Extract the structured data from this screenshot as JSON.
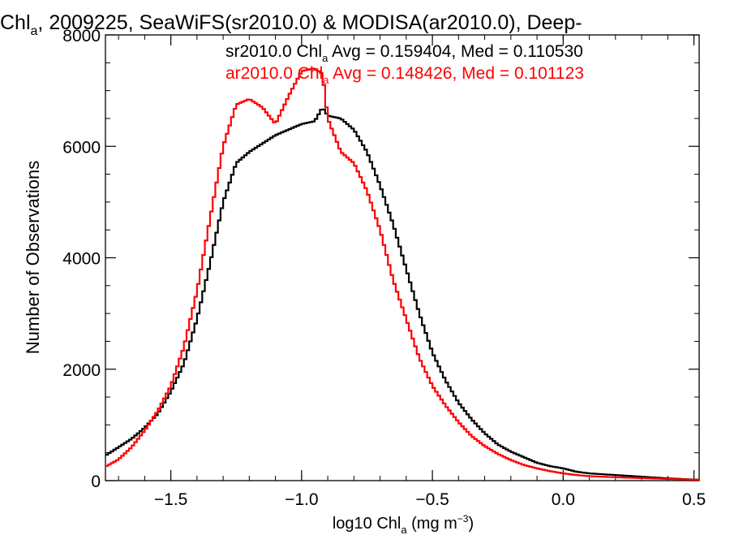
{
  "chart_data": {
    "type": "line",
    "title": {
      "main": "Chl",
      "main_sub": "a",
      "rest": ", 2009225, SeaWiFS(sr2010.0) & MODISA(ar2010.0), Deep-"
    },
    "xlabel": {
      "pre": "log10 Chl",
      "sub": "a",
      "mid": " (mg m",
      "sup": "−3",
      "post": ")"
    },
    "ylabel": "Number of Observations",
    "xlim": [
      -1.75,
      0.52
    ],
    "ylim": [
      0,
      8000
    ],
    "x_ticks": [
      {
        "value": -1.5,
        "label": "−1.5"
      },
      {
        "value": -1.0,
        "label": "−1.0"
      },
      {
        "value": -0.5,
        "label": "−0.5"
      },
      {
        "value": 0.0,
        "label": "0.0"
      },
      {
        "value": 0.5,
        "label": "0.5"
      }
    ],
    "y_ticks": [
      {
        "value": 0,
        "label": "0"
      },
      {
        "value": 2000,
        "label": "2000"
      },
      {
        "value": 4000,
        "label": "4000"
      },
      {
        "value": 6000,
        "label": "6000"
      },
      {
        "value": 8000,
        "label": "8000"
      }
    ],
    "x_minor_step": 0.1,
    "y_minor_step": 500,
    "grid": false,
    "legend_position": "top-right",
    "series": [
      {
        "legend": {
          "pre": "sr2010.0 Chl",
          "sub": "a",
          "post": " Avg = 0.159404, Med = 0.110530"
        },
        "color": "#000000",
        "x": [
          -1.75,
          -1.7,
          -1.65,
          -1.6,
          -1.55,
          -1.5,
          -1.45,
          -1.4,
          -1.35,
          -1.3,
          -1.25,
          -1.2,
          -1.15,
          -1.1,
          -1.05,
          -1.0,
          -0.95,
          -0.92,
          -0.9,
          -0.85,
          -0.8,
          -0.75,
          -0.7,
          -0.65,
          -0.6,
          -0.55,
          -0.5,
          -0.45,
          -0.4,
          -0.35,
          -0.3,
          -0.25,
          -0.2,
          -0.15,
          -0.1,
          -0.05,
          0.0,
          0.05,
          0.1,
          0.2,
          0.3,
          0.4,
          0.52
        ],
        "values": [
          450,
          600,
          750,
          950,
          1200,
          1600,
          2100,
          2900,
          3900,
          5000,
          5700,
          5900,
          6050,
          6200,
          6300,
          6400,
          6450,
          6700,
          6550,
          6500,
          6300,
          5900,
          5300,
          4600,
          3800,
          3000,
          2300,
          1800,
          1400,
          1100,
          850,
          650,
          520,
          420,
          320,
          260,
          220,
          160,
          130,
          100,
          70,
          40,
          15
        ]
      },
      {
        "legend": {
          "pre": "ar2010.0 Chl",
          "sub": "a",
          "post": " Avg = 0.148426, Med = 0.101123"
        },
        "color": "#ff0000",
        "x": [
          -1.75,
          -1.7,
          -1.65,
          -1.6,
          -1.55,
          -1.5,
          -1.45,
          -1.4,
          -1.35,
          -1.3,
          -1.25,
          -1.2,
          -1.15,
          -1.1,
          -1.05,
          -1.0,
          -0.95,
          -0.92,
          -0.9,
          -0.85,
          -0.8,
          -0.75,
          -0.7,
          -0.65,
          -0.6,
          -0.55,
          -0.5,
          -0.45,
          -0.4,
          -0.35,
          -0.3,
          -0.25,
          -0.2,
          -0.15,
          -0.1,
          -0.05,
          0.0,
          0.05,
          0.1,
          0.2,
          0.3,
          0.4,
          0.52
        ],
        "values": [
          250,
          380,
          600,
          900,
          1250,
          1700,
          2400,
          3400,
          4700,
          6000,
          6750,
          6850,
          6700,
          6400,
          6900,
          7350,
          7400,
          7300,
          6500,
          5900,
          5700,
          5200,
          4500,
          3600,
          2900,
          2200,
          1700,
          1350,
          1050,
          800,
          620,
          480,
          370,
          280,
          220,
          170,
          130,
          100,
          80,
          60,
          45,
          30,
          15
        ]
      }
    ]
  }
}
